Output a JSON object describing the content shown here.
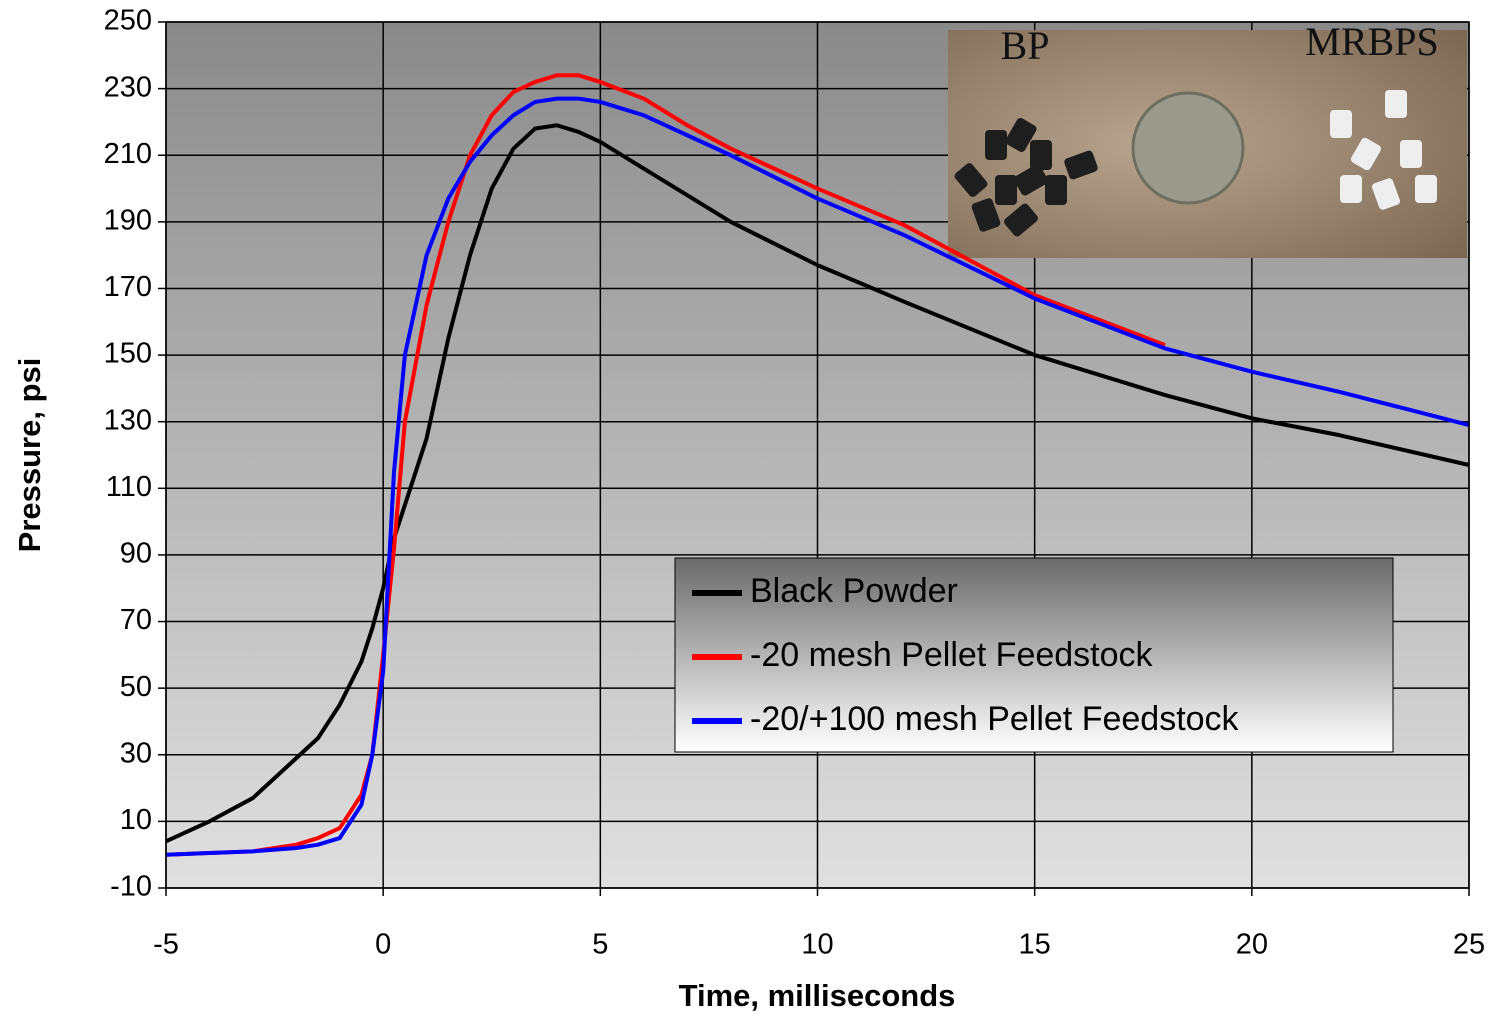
{
  "chart_data": {
    "type": "line",
    "xlabel": "Time, milliseconds",
    "ylabel": "Pressure, psi",
    "annotations": [
      "BP",
      "MRBPS"
    ],
    "x": [
      -5,
      -4,
      -3,
      -2,
      -1.5,
      -1,
      -0.5,
      -0.25,
      0,
      0.25,
      0.5,
      1,
      1.5,
      2,
      2.5,
      3,
      3.5,
      4,
      4.5,
      5,
      6,
      7,
      8,
      10,
      12,
      15,
      18,
      20,
      22,
      25
    ],
    "series": [
      {
        "name": "Black Powder",
        "color": "#000000",
        "values": [
          4,
          10,
          17,
          29,
          35,
          45,
          58,
          68,
          80,
          95,
          105,
          125,
          155,
          180,
          200,
          212,
          218,
          219,
          217,
          214,
          206,
          198,
          190,
          177,
          166,
          150,
          138,
          131,
          126,
          117
        ]
      },
      {
        "name": "-20 mesh Pellet Feedstock",
        "color": "#ff0000",
        "values": [
          0,
          0.5,
          1,
          3,
          5,
          8,
          18,
          30,
          60,
          92,
          130,
          165,
          190,
          210,
          222,
          229,
          232,
          234,
          234,
          232,
          227,
          219,
          212,
          200,
          189,
          168,
          153,
          null,
          null,
          null
        ]
      },
      {
        "name": "-20/+100 mesh Pellet Feedstock",
        "color": "#0000ff",
        "values": [
          0,
          0.5,
          1,
          2,
          3,
          5,
          15,
          30,
          55,
          115,
          150,
          180,
          197,
          208,
          216,
          222,
          226,
          227,
          227,
          226,
          222,
          216,
          210,
          197,
          186,
          167,
          152,
          145,
          139,
          129
        ]
      }
    ],
    "xlim": [
      -5,
      25
    ],
    "xticks": [
      -5,
      0,
      5,
      10,
      15,
      20,
      25
    ],
    "ylim": [
      -10,
      250
    ],
    "yticks": [
      -10,
      10,
      30,
      50,
      70,
      90,
      110,
      130,
      150,
      170,
      190,
      210,
      230,
      250
    ],
    "grid": true
  }
}
